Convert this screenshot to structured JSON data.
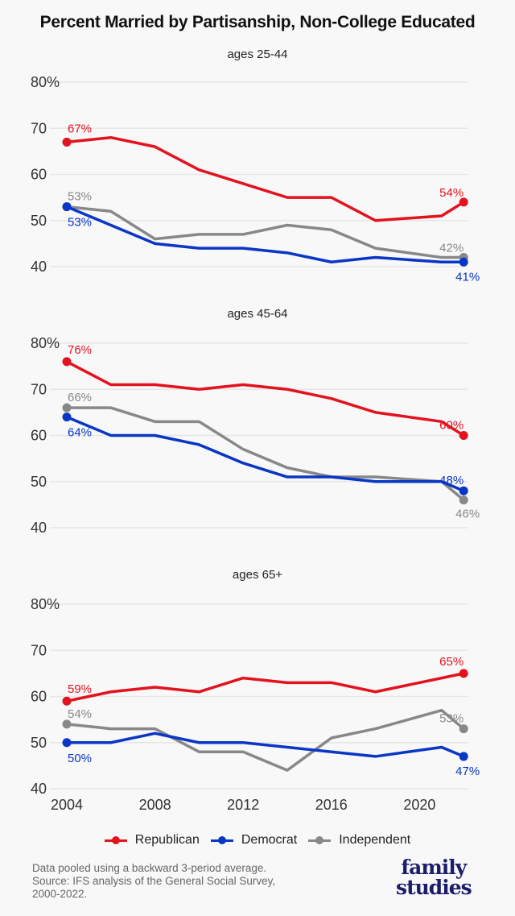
{
  "title": "Percent Married by Partisanship, Non-College Educated",
  "colors": {
    "Republican": "#e3121f",
    "Democrat": "#0a36c6",
    "Independent": "#888888",
    "grid": "#e6e6e6",
    "background": "#f8f8f8"
  },
  "legend": [
    {
      "name": "Republican"
    },
    {
      "name": "Democrat"
    },
    {
      "name": "Independent"
    }
  ],
  "footnote": [
    "Data pooled using a backward 3-period average.",
    "Source: IFS analysis of the General Social Survey,",
    "2000-2022."
  ],
  "logo": {
    "line1": "family",
    "line2": "studies"
  },
  "chart_data": [
    {
      "type": "line",
      "title": "ages 25-44",
      "x": [
        2004,
        2006,
        2008,
        2010,
        2012,
        2014,
        2016,
        2018,
        2021,
        2022
      ],
      "ylim": [
        40,
        80
      ],
      "yticks": [
        "40",
        "50",
        "60",
        "70",
        "80%"
      ],
      "xticks": [],
      "grid": true,
      "series": [
        {
          "name": "Republican",
          "values": [
            67,
            68,
            66,
            61,
            58,
            55,
            55,
            50,
            51,
            54
          ],
          "start_label": "67%",
          "end_label": "54%"
        },
        {
          "name": "Democrat",
          "values": [
            53,
            49,
            45,
            44,
            44,
            43,
            41,
            42,
            41,
            41
          ],
          "start_label": "53%",
          "end_label": "41%"
        },
        {
          "name": "Independent",
          "values": [
            53,
            52,
            46,
            47,
            47,
            49,
            48,
            44,
            42,
            42
          ],
          "start_label": "53%",
          "end_label": "42%"
        }
      ]
    },
    {
      "type": "line",
      "title": "ages 45-64",
      "x": [
        2004,
        2006,
        2008,
        2010,
        2012,
        2014,
        2016,
        2018,
        2021,
        2022
      ],
      "ylim": [
        40,
        80
      ],
      "yticks": [
        "40",
        "50",
        "60",
        "70",
        "80%"
      ],
      "xticks": [],
      "grid": true,
      "series": [
        {
          "name": "Republican",
          "values": [
            76,
            71,
            71,
            70,
            71,
            70,
            68,
            65,
            63,
            60
          ],
          "start_label": "76%",
          "end_label": "60%"
        },
        {
          "name": "Democrat",
          "values": [
            64,
            60,
            60,
            58,
            54,
            51,
            51,
            50,
            50,
            48
          ],
          "start_label": "64%",
          "end_label": "48%"
        },
        {
          "name": "Independent",
          "values": [
            66,
            66,
            63,
            63,
            57,
            53,
            51,
            51,
            50,
            46
          ],
          "start_label": "66%",
          "end_label": "46%"
        }
      ]
    },
    {
      "type": "line",
      "title": "ages 65+",
      "x": [
        2004,
        2006,
        2008,
        2010,
        2012,
        2014,
        2016,
        2018,
        2021,
        2022
      ],
      "ylim": [
        40,
        80
      ],
      "yticks": [
        "40",
        "50",
        "60",
        "70",
        "80%"
      ],
      "xticks": [
        "2004",
        "2008",
        "2012",
        "2016",
        "2020"
      ],
      "grid": true,
      "series": [
        {
          "name": "Republican",
          "values": [
            59,
            61,
            62,
            61,
            64,
            63,
            63,
            61,
            64,
            65
          ],
          "start_label": "59%",
          "end_label": "65%"
        },
        {
          "name": "Democrat",
          "values": [
            50,
            50,
            52,
            50,
            50,
            49,
            48,
            47,
            49,
            47
          ],
          "start_label": "50%",
          "end_label": "47%"
        },
        {
          "name": "Independent",
          "values": [
            54,
            53,
            53,
            48,
            48,
            44,
            51,
            53,
            57,
            53
          ],
          "start_label": "54%",
          "end_label": "53%"
        }
      ]
    }
  ]
}
